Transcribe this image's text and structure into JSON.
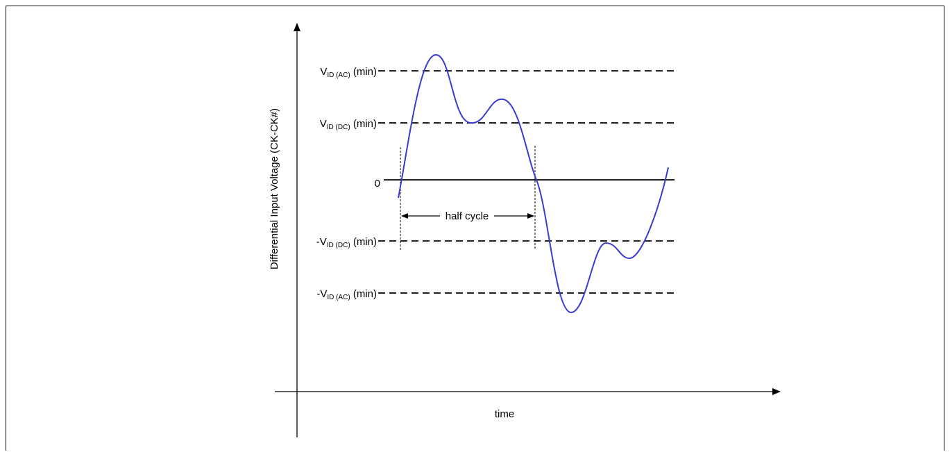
{
  "axes": {
    "y_label": "Differential Input Voltage (CK-CK#)",
    "x_label": "time"
  },
  "levels": {
    "vid_ac": {
      "prefix": "V",
      "sub": "ID (AC)",
      "suffix": " (min)"
    },
    "vid_dc": {
      "prefix": "V",
      "sub": "ID (DC)",
      "suffix": " (min)"
    },
    "zero": "0",
    "neg_vid_dc": {
      "prefix": "-V",
      "sub": "ID (DC)",
      "suffix": " (min)"
    },
    "neg_vid_ac": {
      "prefix": "-V",
      "sub": "ID (AC)",
      "suffix": " (min)"
    }
  },
  "annotation": {
    "half_cycle": "half cycle"
  },
  "colors": {
    "waveform": "#3a3ad0",
    "lines": "#000000"
  }
}
